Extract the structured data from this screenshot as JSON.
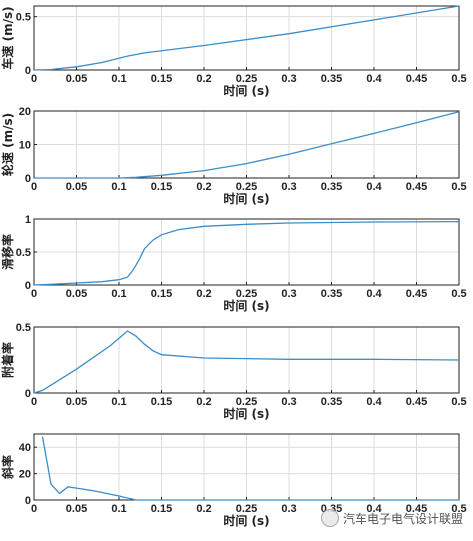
{
  "chart_data": [
    {
      "type": "line",
      "ylabel": "车速 (m/s)",
      "xlabel": "时间 (s)",
      "xlim": [
        0,
        0.5
      ],
      "ylim": [
        0,
        0.6
      ],
      "xticks": [
        0,
        0.05,
        0.1,
        0.15,
        0.2,
        0.25,
        0.3,
        0.35,
        0.4,
        0.45,
        0.5
      ],
      "xtick_labels": [
        "0",
        "0.05",
        "0.1",
        "0.15",
        "0.2",
        "0.25",
        "0.3",
        "0.35",
        "0.4",
        "0.45",
        "0.5"
      ],
      "yticks": [
        0,
        0.5
      ],
      "ytick_labels": [
        "0",
        "0.5"
      ],
      "grid": true,
      "color": "#3c8dc8",
      "series": [
        {
          "x": [
            0,
            0.02,
            0.05,
            0.08,
            0.1,
            0.11,
            0.13,
            0.2,
            0.3,
            0.4,
            0.5
          ],
          "y": [
            0,
            0.005,
            0.03,
            0.07,
            0.11,
            0.13,
            0.16,
            0.23,
            0.34,
            0.47,
            0.6
          ]
        }
      ]
    },
    {
      "type": "line",
      "ylabel": "轮速 (m/s)",
      "xlabel": "时间 (s)",
      "xlim": [
        0,
        0.5
      ],
      "ylim": [
        0,
        20
      ],
      "xticks": [
        0,
        0.05,
        0.1,
        0.15,
        0.2,
        0.25,
        0.3,
        0.35,
        0.4,
        0.45,
        0.5
      ],
      "xtick_labels": [
        "0",
        "0.05",
        "0.1",
        "0.15",
        "0.2",
        "0.25",
        "0.3",
        "0.35",
        "0.4",
        "0.45",
        "0.5"
      ],
      "yticks": [
        0,
        10,
        20
      ],
      "ytick_labels": [
        "0",
        "10",
        "20"
      ],
      "grid": true,
      "color": "#3c8dc8",
      "series": [
        {
          "x": [
            0,
            0.1,
            0.12,
            0.15,
            0.2,
            0.25,
            0.3,
            0.35,
            0.4,
            0.45,
            0.5
          ],
          "y": [
            0,
            0,
            0.2,
            0.8,
            2.2,
            4.3,
            7.1,
            10.2,
            13.3,
            16.5,
            19.8
          ]
        }
      ]
    },
    {
      "type": "line",
      "ylabel": "滑移率",
      "xlabel": "时间 (s)",
      "xlim": [
        0,
        0.5
      ],
      "ylim": [
        0,
        1
      ],
      "xticks": [
        0,
        0.05,
        0.1,
        0.15,
        0.2,
        0.25,
        0.3,
        0.35,
        0.4,
        0.45,
        0.5
      ],
      "xtick_labels": [
        "0",
        "0.05",
        "0.1",
        "0.15",
        "0.2",
        "0.25",
        "0.3",
        "0.35",
        "0.4",
        "0.45",
        "0.5"
      ],
      "yticks": [
        0,
        0.5,
        1
      ],
      "ytick_labels": [
        "0",
        "0.5",
        "1"
      ],
      "grid": true,
      "color": "#3c8dc8",
      "series": [
        {
          "x": [
            0,
            0.02,
            0.05,
            0.08,
            0.1,
            0.11,
            0.115,
            0.12,
            0.125,
            0.13,
            0.14,
            0.15,
            0.17,
            0.2,
            0.25,
            0.3,
            0.4,
            0.5
          ],
          "y": [
            0,
            0.01,
            0.03,
            0.05,
            0.08,
            0.12,
            0.2,
            0.3,
            0.42,
            0.55,
            0.68,
            0.76,
            0.84,
            0.89,
            0.92,
            0.94,
            0.955,
            0.96
          ]
        }
      ]
    },
    {
      "type": "line",
      "ylabel": "附着率",
      "xlabel": "时间 (s)",
      "xlim": [
        0,
        0.5
      ],
      "ylim": [
        0,
        0.5
      ],
      "xticks": [
        0,
        0.05,
        0.1,
        0.15,
        0.2,
        0.25,
        0.3,
        0.35,
        0.4,
        0.45,
        0.5
      ],
      "xtick_labels": [
        "0",
        "0.05",
        "0.1",
        "0.15",
        "0.2",
        "0.25",
        "0.3",
        "0.35",
        "0.4",
        "0.45",
        "0.5"
      ],
      "yticks": [
        0,
        0.5
      ],
      "ytick_labels": [
        "0",
        "0.5"
      ],
      "grid": true,
      "color": "#3c8dc8",
      "series": [
        {
          "x": [
            0,
            0.01,
            0.05,
            0.09,
            0.11,
            0.12,
            0.13,
            0.14,
            0.15,
            0.2,
            0.3,
            0.4,
            0.5
          ],
          "y": [
            0,
            0.02,
            0.18,
            0.36,
            0.47,
            0.43,
            0.37,
            0.32,
            0.29,
            0.265,
            0.255,
            0.255,
            0.25
          ]
        }
      ]
    },
    {
      "type": "line",
      "ylabel": "斜率",
      "xlabel": "时间 (s)",
      "xlim": [
        0,
        0.5
      ],
      "ylim": [
        0,
        50
      ],
      "xticks": [
        0,
        0.05,
        0.1,
        0.15,
        0.2,
        0.25,
        0.3,
        0.35,
        0.4,
        0.45,
        0.5
      ],
      "xtick_labels": [
        "0",
        "0.05",
        "0.1",
        "0.15",
        "0.2",
        "0.25",
        "0.3",
        "0.35",
        "0.4",
        "0.45",
        "0.5"
      ],
      "yticks": [
        0,
        20,
        40
      ],
      "ytick_labels": [
        "0",
        "20",
        "40"
      ],
      "grid": true,
      "color": "#3c8dc8",
      "series": [
        {
          "x": [
            0.01,
            0.02,
            0.03,
            0.04,
            0.05,
            0.07,
            0.1,
            0.12,
            0.2,
            0.3,
            0.4,
            0.5
          ],
          "y": [
            48,
            12,
            5,
            10,
            9,
            7,
            3,
            0,
            0,
            0,
            0,
            0
          ]
        }
      ]
    }
  ],
  "watermark": {
    "text": "汽车电子电气设计联盟"
  }
}
